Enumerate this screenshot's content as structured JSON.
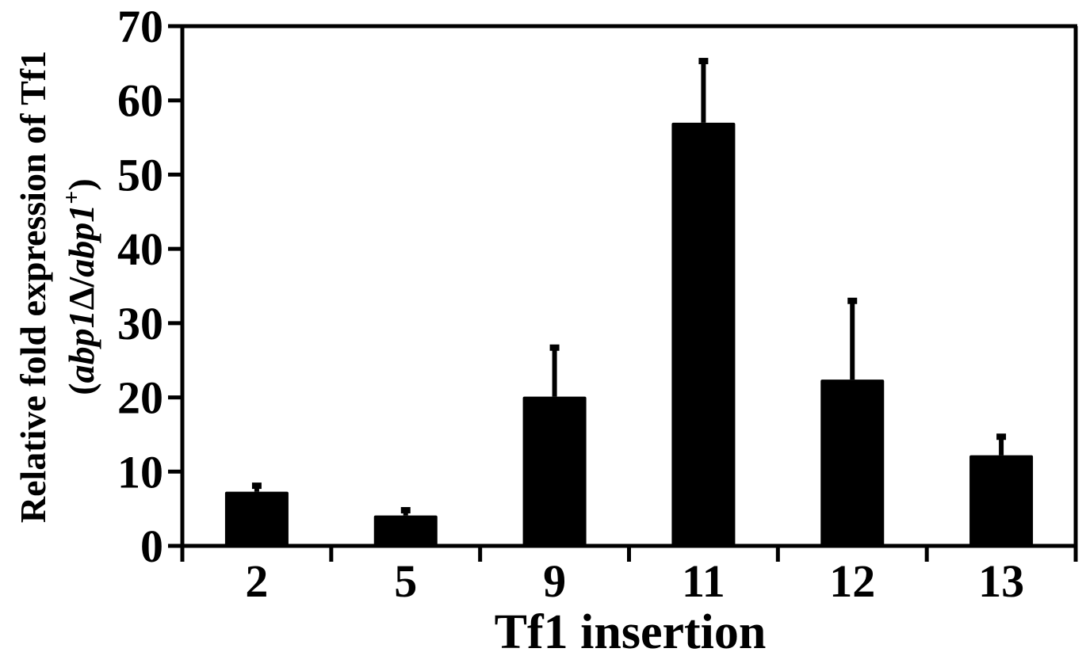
{
  "chart_data": {
    "type": "bar",
    "categories": [
      "2",
      "5",
      "9",
      "11",
      "12",
      "13"
    ],
    "values": [
      7.3,
      4.1,
      20.1,
      57.0,
      22.4,
      12.2
    ],
    "error_upper": [
      8.1,
      4.8,
      26.7,
      65.3,
      33.0,
      14.7
    ],
    "xlabel": "Tf1 insertion",
    "ylabel_line1": "Relative fold expression of Tf1",
    "ylabel_line2": {
      "open": "(",
      "italic_a": "abp1",
      "delta": "Δ",
      "slash": "/",
      "italic_b": "abp1",
      "superscript": "+",
      "close": ")"
    },
    "ylim": [
      0,
      70
    ],
    "yticks": [
      "0",
      "10",
      "20",
      "30",
      "40",
      "50",
      "60",
      "70"
    ],
    "grid": false,
    "legend": "none",
    "colors": {
      "bar": "#000000",
      "axis": "#000000",
      "background": "#ffffff"
    }
  }
}
